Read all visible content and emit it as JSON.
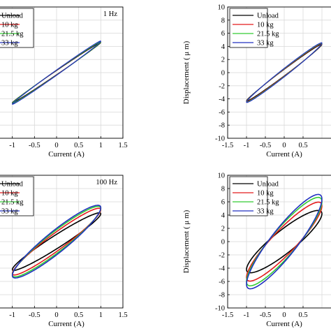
{
  "chart_data": [
    {
      "type": "line",
      "title": "",
      "annotation": "1 Hz",
      "xlabel": "Current (A)",
      "ylabel": "",
      "xlim": [
        -1.5,
        1.5
      ],
      "ylim": [
        -10,
        10
      ],
      "xticks": [
        -1,
        -0.5,
        0,
        0.5,
        1,
        1.5
      ],
      "xtick_labels": [
        "-1",
        "-0.5",
        "0",
        "0.5",
        "1",
        "1.5"
      ],
      "yticks": [
        -10,
        -8,
        -6,
        -4,
        -2,
        0,
        2,
        4,
        6,
        8,
        10
      ],
      "grid": true,
      "legend_position": "top-left",
      "legend_labels": [
        "Unload",
        "10 kg",
        "21.5 kg",
        "33 kg"
      ],
      "series": [
        {
          "name": "Unload",
          "color": "#000000",
          "peak": 4.6,
          "half_width": 0.32
        },
        {
          "name": "10 kg",
          "color": "#e41a1c",
          "peak": 4.7,
          "half_width": 0.36
        },
        {
          "name": "21.5 kg",
          "color": "#33cc33",
          "peak": 4.7,
          "half_width": 0.38
        },
        {
          "name": "33 kg",
          "color": "#2030c0",
          "peak": 4.8,
          "half_width": 0.4
        }
      ]
    },
    {
      "type": "line",
      "title": "",
      "annotation": "",
      "xlabel": "Current (A)",
      "ylabel": "Displacement ( μ m)",
      "xlim": [
        -1.5,
        1.5
      ],
      "ylim": [
        -10,
        10
      ],
      "xticks": [
        -1.5,
        -1,
        -0.5,
        0,
        0.5
      ],
      "xtick_labels": [
        "-1.5",
        "-1",
        "-0.5",
        "0",
        "0.5"
      ],
      "yticks": [
        -10,
        -8,
        -6,
        -4,
        -2,
        0,
        2,
        4,
        6,
        8,
        10
      ],
      "ytick_labels": [
        "-10",
        "-8",
        "-6",
        "-4",
        "-2",
        "0",
        "2",
        "4",
        "6",
        "8",
        "10"
      ],
      "grid": true,
      "legend_position": "top-left",
      "legend_labels": [
        "Unload",
        "10 kg",
        "21.5 kg",
        "33 kg"
      ],
      "series": [
        {
          "name": "Unload",
          "color": "#000000",
          "peak": 4.3,
          "half_width": 0.5
        },
        {
          "name": "10 kg",
          "color": "#e41a1c",
          "peak": 4.4,
          "half_width": 0.55
        },
        {
          "name": "21.5 kg",
          "color": "#33cc33",
          "peak": 4.45,
          "half_width": 0.6
        },
        {
          "name": "33 kg",
          "color": "#2030c0",
          "peak": 4.5,
          "half_width": 0.65
        }
      ]
    },
    {
      "type": "line",
      "title": "",
      "annotation": "100 Hz",
      "xlabel": "Current (A)",
      "ylabel": "",
      "xlim": [
        -1.5,
        1.5
      ],
      "ylim": [
        -10,
        10
      ],
      "xticks": [
        -1,
        -0.5,
        0,
        0.5,
        1,
        1.5
      ],
      "xtick_labels": [
        "-1",
        "-0.5",
        "0",
        "0.5",
        "1",
        "1.5"
      ],
      "yticks": [
        -10,
        -8,
        -6,
        -4,
        -2,
        0,
        2,
        4,
        6,
        8,
        10
      ],
      "grid": true,
      "legend_position": "top-left",
      "legend_labels": [
        "Unload",
        "10 kg",
        "21.5 kg",
        "33 kg"
      ],
      "series": [
        {
          "name": "Unload",
          "color": "#000000",
          "peak": 4.2,
          "half_width": 1.1
        },
        {
          "name": "10 kg",
          "color": "#e41a1c",
          "peak": 4.8,
          "half_width": 1.5
        },
        {
          "name": "21.5 kg",
          "color": "#33cc33",
          "peak": 5.0,
          "half_width": 1.8
        },
        {
          "name": "33 kg",
          "color": "#2030c0",
          "peak": 5.1,
          "half_width": 2.0
        }
      ]
    },
    {
      "type": "line",
      "title": "",
      "annotation": "",
      "xlabel": "Current (A)",
      "ylabel": "Displacement ( μ m)",
      "xlim": [
        -1.5,
        1.5
      ],
      "ylim": [
        -10,
        10
      ],
      "xticks": [
        -1.5,
        -1,
        -0.5,
        0,
        0.5
      ],
      "xtick_labels": [
        "-1.5",
        "-1",
        "-0.5",
        "0",
        "0.5"
      ],
      "yticks": [
        -10,
        -8,
        -6,
        -4,
        -2,
        0,
        2,
        4,
        6,
        8,
        10
      ],
      "ytick_labels": [
        "-10",
        "-8",
        "-6",
        "-4",
        "-2",
        "0",
        "2",
        "4",
        "6",
        "8",
        "10"
      ],
      "grid": true,
      "legend_position": "top-left",
      "legend_labels": [
        "Unload",
        "10 kg",
        "21.5 kg",
        "33 kg"
      ],
      "series": [
        {
          "name": "Unload",
          "color": "#000000",
          "peak": 4.2,
          "half_width": 2.1
        },
        {
          "name": "10 kg",
          "color": "#e41a1c",
          "peak": 5.4,
          "half_width": 2.5
        },
        {
          "name": "21.5 kg",
          "color": "#33cc33",
          "peak": 6.0,
          "half_width": 2.9
        },
        {
          "name": "33 kg",
          "color": "#2030c0",
          "peak": 6.4,
          "half_width": 3.1
        }
      ]
    }
  ]
}
